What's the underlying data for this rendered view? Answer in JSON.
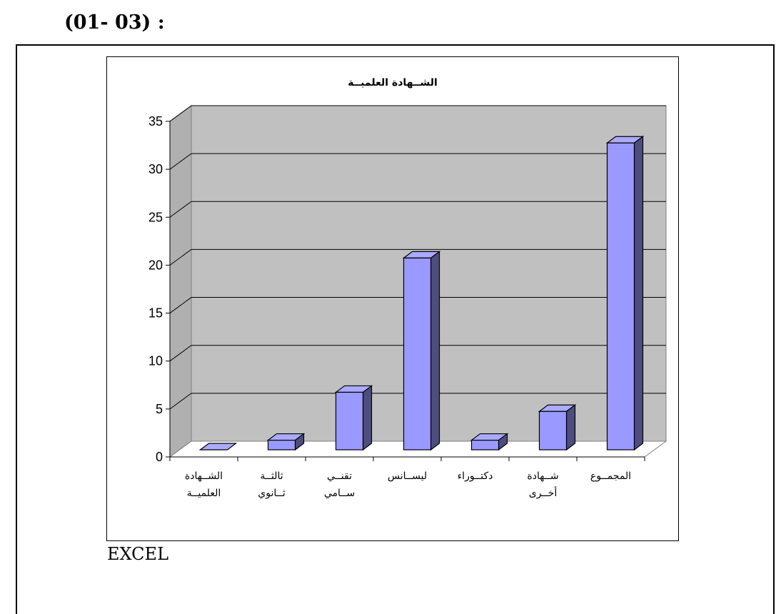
{
  "page": {
    "caption_top": "(01- 03) :",
    "caption_bottom": "EXCEL"
  },
  "colors": {
    "plot_background": "#c0c0c0",
    "plot_side": "#b0b0b0",
    "bar_front": "#9999ff",
    "bar_top": "#aaaaff",
    "bar_side": "#4d4d80",
    "grid": "#000000"
  },
  "chart_data": {
    "type": "bar",
    "title": "الشــهادة العلميــة",
    "categories": [
      [
        "الشــهادة",
        "العلميــة"
      ],
      [
        "ثالثــة",
        "ثــانوي"
      ],
      [
        "تقنــي",
        "ســامي"
      ],
      [
        "ليســانس"
      ],
      [
        "دكتــوراء"
      ],
      [
        "شــهادة",
        "أخــرى"
      ],
      [
        "المجمــوع"
      ]
    ],
    "values": [
      0,
      1,
      6,
      20,
      1,
      4,
      32
    ],
    "ylim": [
      0,
      35
    ],
    "yticks": [
      0,
      5,
      10,
      15,
      20,
      25,
      30,
      35
    ],
    "xlabel": "",
    "ylabel": "",
    "grid": true,
    "legend": "none",
    "style": "3d"
  }
}
